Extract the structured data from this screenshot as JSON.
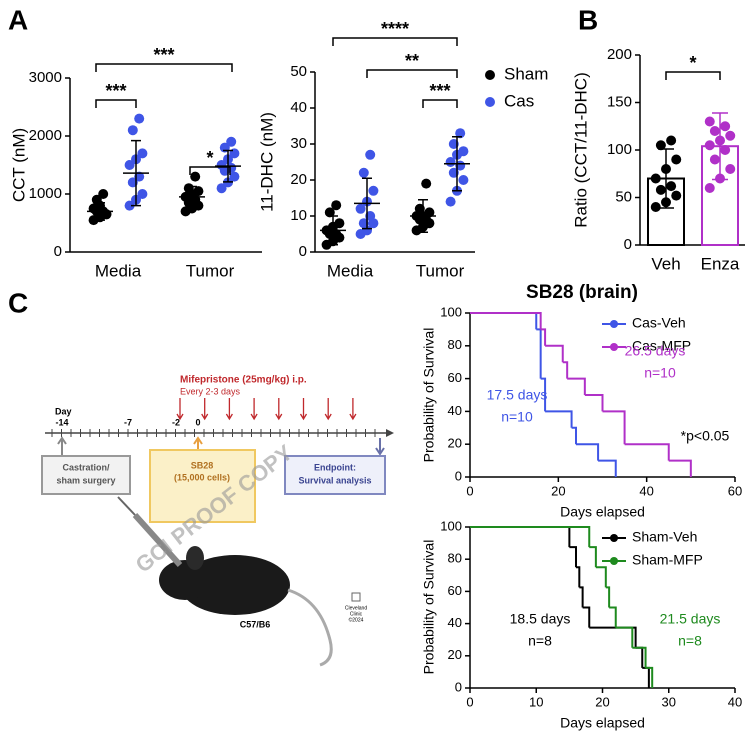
{
  "panel_labels": [
    "A",
    "B",
    "C"
  ],
  "chart_data": [
    {
      "type": "dot",
      "ylabel": "CCT (nM)",
      "categories": [
        "Media",
        "Tumor"
      ],
      "ylim": [
        0,
        3000
      ],
      "yticks": [
        0,
        1000,
        2000,
        3000
      ],
      "series": [
        {
          "color": "#000000",
          "values": [
            [
              550,
              600,
              650,
              700,
              700,
              750,
              800,
              650,
              900,
              1000
            ],
            [
              700,
              750,
              800,
              850,
              900,
              950,
              1000,
              1050,
              1100,
              1300
            ]
          ],
          "mean": [
            700,
            950
          ],
          "sd": [
            150,
            180
          ]
        },
        {
          "color": "#3f55e6",
          "values": [
            [
              800,
              900,
              1000,
              1200,
              1300,
              1500,
              1600,
              1700,
              2100,
              2300
            ],
            [
              1100,
              1200,
              1300,
              1400,
              1450,
              1500,
              1600,
              1700,
              1800,
              1900
            ]
          ],
          "mean": [
            1360,
            1480
          ],
          "sd": [
            560,
            270
          ]
        }
      ],
      "annotations": [
        "***",
        "***",
        "*"
      ]
    },
    {
      "type": "dot",
      "ylabel": "11-DHC (nM)",
      "categories": [
        "Media",
        "Tumor"
      ],
      "ylim": [
        0,
        50
      ],
      "yticks": [
        0,
        10,
        20,
        30,
        40,
        50
      ],
      "legend": "right",
      "series": [
        {
          "name": "Sham",
          "color": "#000000",
          "values": [
            [
              2,
              3,
              4,
              5,
              5,
              6,
              7,
              8,
              11,
              13
            ],
            [
              6,
              7,
              8,
              9,
              9,
              10,
              10,
              11,
              12,
              19
            ]
          ],
          "mean": [
            6,
            10
          ],
          "sd": [
            4,
            4.5
          ]
        },
        {
          "name": "Cas",
          "color": "#3f55e6",
          "values": [
            [
              5,
              6,
              8,
              8,
              10,
              12,
              14,
              17,
              22,
              27
            ],
            [
              14,
              17,
              20,
              22,
              24,
              25,
              27,
              28,
              30,
              33
            ]
          ],
          "mean": [
            13.5,
            24.5
          ],
          "sd": [
            7,
            7.5
          ]
        }
      ],
      "annotations": [
        "****",
        "**",
        "***"
      ]
    },
    {
      "type": "bar_dot",
      "ylabel": "Ratio (CCT/11-DHC)",
      "categories": [
        "Veh",
        "Enza"
      ],
      "colors": [
        "#000000",
        "#b030c8"
      ],
      "ylim": [
        0,
        200
      ],
      "yticks": [
        0,
        50,
        100,
        150,
        200
      ],
      "values": [
        70,
        104
      ],
      "sd": [
        31,
        35
      ],
      "points": [
        [
          40,
          45,
          52,
          58,
          62,
          70,
          80,
          90,
          105,
          110
        ],
        [
          60,
          70,
          80,
          90,
          100,
          105,
          110,
          115,
          120,
          125,
          130
        ]
      ],
      "annotations": [
        "*"
      ]
    },
    {
      "type": "survival",
      "title": "SB28 (brain)",
      "xlabel": "Days elapsed",
      "ylabel": "Probability of Survival",
      "xlim": [
        0,
        60
      ],
      "xticks": [
        0,
        20,
        40,
        60
      ],
      "ylim": [
        0,
        100
      ],
      "yticks": [
        0,
        20,
        40,
        60,
        80,
        100
      ],
      "series": [
        {
          "name": "Cas-Veh",
          "color": "#3f55e6",
          "x": [
            0,
            15,
            16,
            17,
            23,
            24,
            29,
            33
          ],
          "y": [
            100,
            90,
            60,
            40,
            30,
            20,
            10,
            0
          ]
        },
        {
          "name": "Cas-MFP",
          "color": "#b030c8",
          "x": [
            0,
            16,
            17,
            21,
            22,
            26,
            30,
            35,
            45,
            50
          ],
          "y": [
            100,
            90,
            80,
            70,
            60,
            50,
            40,
            20,
            10,
            0
          ]
        }
      ],
      "annotations": [
        {
          "text": "17.5 days",
          "color": "#3f55e6"
        },
        {
          "text": "n=10",
          "color": "#3f55e6"
        },
        {
          "text": "26.5 days",
          "color": "#b030c8"
        },
        {
          "text": "n=10",
          "color": "#b030c8"
        },
        {
          "text": "*p<0.05",
          "color": "#000000"
        }
      ]
    },
    {
      "type": "survival",
      "xlabel": "Days elapsed",
      "ylabel": "Probability of Survival",
      "xlim": [
        0,
        40
      ],
      "xticks": [
        0,
        10,
        20,
        30,
        40
      ],
      "ylim": [
        0,
        100
      ],
      "yticks": [
        0,
        20,
        40,
        60,
        80,
        100
      ],
      "series": [
        {
          "name": "Sham-Veh",
          "color": "#000000",
          "x": [
            0,
            15,
            16,
            16.5,
            17,
            18,
            25,
            26,
            27
          ],
          "y": [
            100,
            87.5,
            75,
            62.5,
            50,
            37.5,
            25,
            12.5,
            0
          ]
        },
        {
          "name": "Sham-MFP",
          "color": "#1e8a1e",
          "x": [
            0,
            18,
            19,
            20.5,
            21,
            22,
            24.5,
            26.5,
            27.5
          ],
          "y": [
            100,
            87.5,
            75,
            62.5,
            50,
            37.5,
            25,
            12.5,
            0
          ]
        }
      ],
      "annotations": [
        {
          "text": "18.5 days",
          "color": "#000000"
        },
        {
          "text": "n=8",
          "color": "#000000"
        },
        {
          "text": "21.5 days",
          "color": "#1e8a1e"
        },
        {
          "text": "n=8",
          "color": "#1e8a1e"
        }
      ]
    }
  ],
  "schematic": {
    "day": "Day",
    "days": [
      "-14",
      "-7",
      "-2",
      "0"
    ],
    "drug": "Mifepristone (25mg/kg) i.p.",
    "schedule": "Every 2-3 days",
    "castration": [
      "Castration/",
      "sham surgery"
    ],
    "tumor": [
      "SB28",
      "(15,000 cells)"
    ],
    "endpoint": [
      "Endpoint:",
      "Survival analysis"
    ],
    "strain": "C57/B6",
    "credit": [
      "Cleveland",
      "Clinic",
      "©2024"
    ],
    "watermark": "GCI PROOF COPY"
  }
}
